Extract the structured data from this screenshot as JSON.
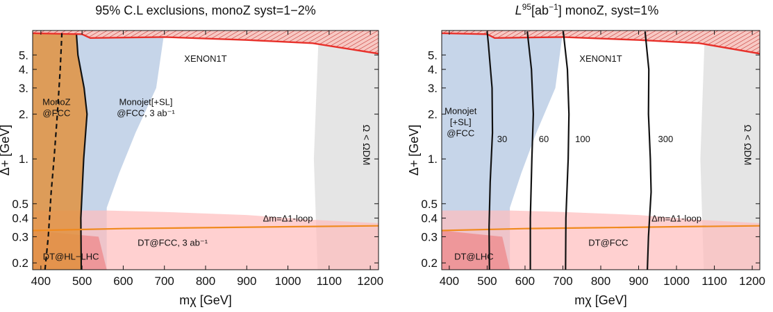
{
  "chart_data": [
    {
      "type": "area",
      "title_parts": [
        "95% C.L exclusions, monoZ syst=1−2%"
      ],
      "xlabel": "mχ [GeV]",
      "ylabel": "Δ+ [GeV]",
      "xlim": [
        380,
        1220
      ],
      "ylim": [
        0.18,
        7.3
      ],
      "y_scale": "log",
      "x_ticks": [
        400,
        500,
        600,
        700,
        800,
        900,
        1000,
        1100,
        1200
      ],
      "y_ticks": [
        0.2,
        0.3,
        0.4,
        0.5,
        1,
        2,
        3,
        4,
        5
      ],
      "y_tick_labels": [
        "0.2",
        "0.3",
        "0.4",
        "0.5",
        "1.",
        "2.",
        "3.",
        "4.",
        "5."
      ],
      "regions": [
        {
          "name": "XENON1T",
          "color": "#e8302a",
          "upper": [
            [
              380,
              7.3
            ],
            [
              1220,
              7.3
            ]
          ],
          "lower": [
            [
              380,
              7.0
            ],
            [
              500,
              6.9
            ],
            [
              520,
              6.5
            ],
            [
              700,
              6.6
            ],
            [
              900,
              6.3
            ],
            [
              1060,
              6.0
            ],
            [
              1220,
              5.1
            ]
          ]
        },
        {
          "name": "Monojet[+SL] @FCC, 3 ab⁻¹",
          "color": "#b3c7e2",
          "left": [
            [
              380,
              0.18
            ],
            [
              380,
              7.2
            ]
          ],
          "right": [
            [
              560,
              0.47
            ],
            [
              590,
              0.8
            ],
            [
              630,
              1.5
            ],
            [
              680,
              3.0
            ],
            [
              700,
              7.2
            ]
          ]
        },
        {
          "name": "MonoZ @FCC",
          "color": "#e0923f",
          "boundary_x_at_y": [
            [
              0.18,
              498
            ],
            [
              0.4,
              497
            ],
            [
              1.0,
              504
            ],
            [
              2.0,
              512
            ],
            [
              3.0,
              505
            ],
            [
              5.0,
              490
            ],
            [
              7.2,
              486
            ]
          ]
        },
        {
          "name": "DT@FCC, 3 ab⁻¹",
          "color": "#ffbcbc",
          "top": [
            [
              380,
              0.45
            ],
            [
              560,
              0.45
            ],
            [
              700,
              0.44
            ],
            [
              900,
              0.42
            ],
            [
              1060,
              0.39
            ],
            [
              1220,
              0.37
            ]
          ]
        },
        {
          "name": "DT@HL−LHC",
          "color": "#ee7a7a",
          "top": [
            [
              380,
              0.33
            ],
            [
              540,
              0.3
            ],
            [
              560,
              0.18
            ]
          ]
        },
        {
          "name": "Ω < ΩDM",
          "color": "#e4e4e4",
          "left_boundary": [
            [
              1072,
              0.18
            ],
            [
              1063,
              1.0
            ],
            [
              1075,
              7.2
            ]
          ]
        }
      ],
      "lines": [
        {
          "name": "Δm=Δ1-loop",
          "color": "#f08a1e",
          "points": [
            [
              380,
              0.33
            ],
            [
              600,
              0.34
            ],
            [
              800,
              0.345
            ],
            [
              1000,
              0.35
            ],
            [
              1220,
              0.355
            ]
          ]
        },
        {
          "name": "MonoZ dashed",
          "color": "#111111",
          "dashed": true,
          "points": [
            [
              410,
              0.18
            ],
            [
              418,
              0.3
            ],
            [
              425,
              0.6
            ],
            [
              432,
              1.0
            ],
            [
              440,
              2.0
            ],
            [
              447,
              4.0
            ],
            [
              451,
              7.0
            ]
          ]
        }
      ],
      "annotations": [
        {
          "text_parts": [
            "XENON1T"
          ],
          "x": 800,
          "y": 4.5
        },
        {
          "text_parts": [
            "MonoZ",
            "@FCC"
          ],
          "x": 438,
          "y": 2.3
        },
        {
          "text_parts": [
            "Monojet[+SL]",
            "@FCC, 3 ab⁻¹"
          ],
          "x": 655,
          "y": 2.3
        },
        {
          "text_parts": [
            "DT@FCC, 3 ab⁻¹"
          ],
          "x": 720,
          "y": 0.26
        },
        {
          "text_parts": [
            "DT@HL−LHC"
          ],
          "x": 473,
          "y": 0.21
        },
        {
          "text_parts": [
            "Δm=Δ1-loop"
          ],
          "x": 1000,
          "y": 0.38
        }
      ]
    },
    {
      "type": "line",
      "title_parts": [
        "L",
        "95",
        "[ab",
        "−1",
        "] monoZ, syst=1%"
      ],
      "xlabel": "mχ [GeV]",
      "ylabel": "Δ+ [GeV]",
      "xlim": [
        380,
        1220
      ],
      "ylim": [
        0.18,
        7.3
      ],
      "y_scale": "log",
      "x_ticks": [
        400,
        500,
        600,
        700,
        800,
        900,
        1000,
        1100,
        1200
      ],
      "y_ticks": [
        0.2,
        0.3,
        0.4,
        0.5,
        1,
        2,
        3,
        4,
        5
      ],
      "y_tick_labels": [
        "0.2",
        "0.3",
        "0.4",
        "0.5",
        "1.",
        "2.",
        "3.",
        "4.",
        "5."
      ],
      "regions": [
        {
          "name": "XENON1T",
          "color": "#e8302a",
          "upper": [
            [
              380,
              7.3
            ],
            [
              1220,
              7.3
            ]
          ],
          "lower": [
            [
              380,
              7.0
            ],
            [
              500,
              6.9
            ],
            [
              520,
              6.5
            ],
            [
              700,
              6.6
            ],
            [
              900,
              6.3
            ],
            [
              1060,
              6.0
            ],
            [
              1220,
              5.1
            ]
          ]
        },
        {
          "name": "Monojet [+SL] @FCC",
          "color": "#b3c7e2",
          "left": [
            [
              380,
              0.18
            ],
            [
              380,
              7.2
            ]
          ],
          "right": [
            [
              560,
              0.47
            ],
            [
              590,
              0.8
            ],
            [
              630,
              1.5
            ],
            [
              680,
              3.0
            ],
            [
              700,
              7.2
            ]
          ]
        },
        {
          "name": "DT@FCC",
          "color": "#ffbcbc",
          "top": [
            [
              380,
              0.45
            ],
            [
              560,
              0.45
            ],
            [
              700,
              0.44
            ],
            [
              900,
              0.42
            ],
            [
              1060,
              0.39
            ],
            [
              1220,
              0.37
            ]
          ]
        },
        {
          "name": "DT@LHC",
          "color": "#ee7a7a",
          "top": [
            [
              380,
              0.33
            ],
            [
              540,
              0.3
            ],
            [
              560,
              0.18
            ]
          ]
        },
        {
          "name": "Ω < ΩDM",
          "color": "#e4e4e4",
          "left_boundary": [
            [
              1072,
              0.18
            ],
            [
              1063,
              1.0
            ],
            [
              1075,
              7.2
            ]
          ]
        }
      ],
      "lines": [
        {
          "name": "Δm=Δ1-loop",
          "color": "#f08a1e",
          "points": [
            [
              380,
              0.33
            ],
            [
              600,
              0.34
            ],
            [
              800,
              0.345
            ],
            [
              1000,
              0.35
            ],
            [
              1220,
              0.355
            ]
          ]
        }
      ],
      "contours": [
        {
          "label": "30",
          "points": [
            [
              506,
              0.18
            ],
            [
              505,
              0.35
            ],
            [
              508,
              0.7
            ],
            [
              514,
              1.5
            ],
            [
              513,
              3.0
            ],
            [
              503,
              6.0
            ],
            [
              500,
              7.2
            ]
          ]
        },
        {
          "label": "60",
          "points": [
            [
              614,
              0.18
            ],
            [
              614,
              0.4
            ],
            [
              618,
              1.0
            ],
            [
              622,
              2.0
            ],
            [
              617,
              4.0
            ],
            [
              606,
              7.2
            ]
          ]
        },
        {
          "label": "100",
          "points": [
            [
              707,
              0.18
            ],
            [
              708,
              0.4
            ],
            [
              714,
              1.0
            ],
            [
              716,
              2.0
            ],
            [
              712,
              4.0
            ],
            [
              701,
              7.2
            ]
          ]
        },
        {
          "label": "300",
          "points": [
            [
              923,
              0.18
            ],
            [
              926,
              0.3
            ],
            [
              933,
              0.6
            ],
            [
              931,
              1.0
            ],
            [
              926,
              2.0
            ],
            [
              927,
              4.0
            ],
            [
              917,
              7.2
            ]
          ]
        }
      ],
      "annotations": [
        {
          "text_parts": [
            "XENON1T"
          ],
          "x": 800,
          "y": 4.5
        },
        {
          "text_parts": [
            "Monojet",
            "[+SL]",
            "@FCC"
          ],
          "x": 430,
          "y": 2.0
        },
        {
          "text_parts": [
            "DT@FCC"
          ],
          "x": 820,
          "y": 0.26
        },
        {
          "text_parts": [
            "DT@LHC"
          ],
          "x": 465,
          "y": 0.21
        },
        {
          "text_parts": [
            "Δm=Δ1-loop"
          ],
          "x": 1000,
          "y": 0.38
        }
      ]
    }
  ]
}
